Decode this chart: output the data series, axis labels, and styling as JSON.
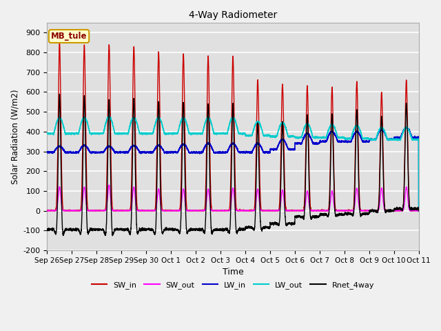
{
  "title": "4-Way Radiometer",
  "xlabel": "Time",
  "ylabel": "Solar Radiation (W/m2)",
  "ylim": [
    -200,
    950
  ],
  "yticks": [
    -200,
    -100,
    0,
    100,
    200,
    300,
    400,
    500,
    600,
    700,
    800,
    900
  ],
  "background_color": "#f0f0f0",
  "plot_bg_color": "#e0e0e0",
  "grid_color": "#ffffff",
  "annotation_text": "MB_tule",
  "annotation_bg": "#ffffcc",
  "annotation_border": "#cc9900",
  "x_tick_labels": [
    "Sep 26",
    "Sep 27",
    "Sep 28",
    "Sep 29",
    "Sep 30",
    "Oct 1",
    "Oct 2",
    "Oct 3",
    "Oct 4",
    "Oct 5",
    "Oct 6",
    "Oct 7",
    "Oct 8",
    "Oct 9",
    "Oct 10",
    "Oct 11"
  ],
  "num_days": 15,
  "legend_entries": [
    "SW_in",
    "SW_out",
    "LW_in",
    "LW_out",
    "Rnet_4way"
  ],
  "line_colors": {
    "SW_in": "#cc0000",
    "SW_out": "#ff00ff",
    "LW_in": "#0000cc",
    "LW_out": "#00cccc",
    "Rnet_4way": "#000000"
  },
  "sw_in_peaks": [
    850,
    835,
    840,
    830,
    800,
    790,
    780,
    780,
    660,
    640,
    630,
    620,
    650,
    600,
    660
  ],
  "sw_out_peaks": [
    120,
    120,
    130,
    120,
    110,
    110,
    110,
    115,
    110,
    105,
    100,
    100,
    115,
    115,
    120
  ],
  "lw_in_night": [
    295,
    295,
    295,
    295,
    295,
    295,
    295,
    295,
    295,
    310,
    340,
    350,
    350,
    360,
    370
  ],
  "lw_in_day_extra": [
    30,
    35,
    30,
    35,
    35,
    40,
    45,
    45,
    45,
    50,
    50,
    50,
    50,
    50,
    50
  ],
  "lw_out_night": [
    390,
    390,
    390,
    390,
    390,
    390,
    390,
    390,
    380,
    375,
    370,
    370,
    365,
    360,
    360
  ],
  "lw_out_day_extra": [
    80,
    80,
    85,
    80,
    80,
    80,
    80,
    80,
    70,
    70,
    70,
    65,
    65,
    60,
    60
  ],
  "rnet_night": [
    -100,
    -100,
    -100,
    -100,
    -90,
    -90,
    -90,
    -90,
    -60,
    -55,
    -55,
    -50,
    -50,
    -50,
    -50
  ]
}
